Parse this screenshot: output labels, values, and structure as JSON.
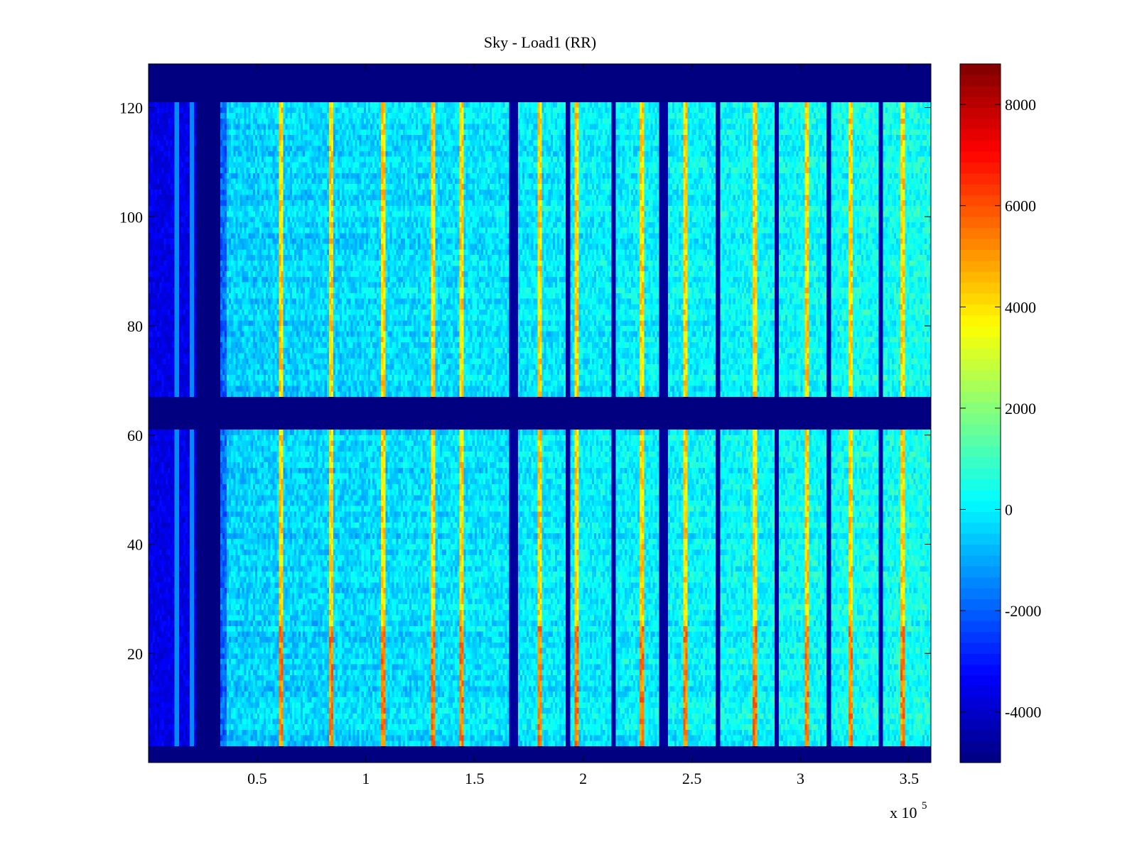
{
  "chart_data": {
    "type": "heatmap",
    "title": "Sky - Load1 (RR)",
    "xlabel": "",
    "ylabel": "",
    "x_exponent_label": "x 10",
    "x_exponent": "5",
    "xlim": [
      0,
      3.6
    ],
    "ylim": [
      0,
      128
    ],
    "x_ticks": [
      0.5,
      1,
      1.5,
      2,
      2.5,
      3,
      3.5
    ],
    "x_tick_labels": [
      "0.5",
      "1",
      "1.5",
      "2",
      "2.5",
      "3",
      "3.5"
    ],
    "y_ticks": [
      20,
      40,
      60,
      80,
      100,
      120
    ],
    "y_tick_labels": [
      "20",
      "40",
      "60",
      "80",
      "100",
      "120"
    ],
    "colorbar": {
      "colormap": "jet",
      "range": [
        -5000,
        8800
      ],
      "ticks": [
        -4000,
        -2000,
        0,
        2000,
        4000,
        6000,
        8000
      ],
      "tick_labels": [
        "-4000",
        "-2000",
        "0",
        "2000",
        "4000",
        "6000",
        "8000"
      ]
    },
    "background_level": -500,
    "masked_value": -5000,
    "masked_row_bands": [
      [
        0,
        3
      ],
      [
        61,
        67
      ],
      [
        121,
        128
      ]
    ],
    "masked_column_bands": [
      [
        0.22,
        0.33
      ]
    ],
    "low_column_band": [
      0,
      0.22
    ],
    "bright_columns_x": [
      0.61,
      0.84,
      1.08,
      1.31,
      1.44,
      1.8,
      1.97,
      2.27,
      2.47,
      2.79,
      3.03,
      3.23,
      3.47
    ],
    "dark_columns_x": [
      1.67,
      1.69,
      1.93,
      2.14,
      2.36,
      2.38,
      2.62,
      2.89,
      3.13,
      3.37
    ],
    "grid": false,
    "legend": "none"
  }
}
